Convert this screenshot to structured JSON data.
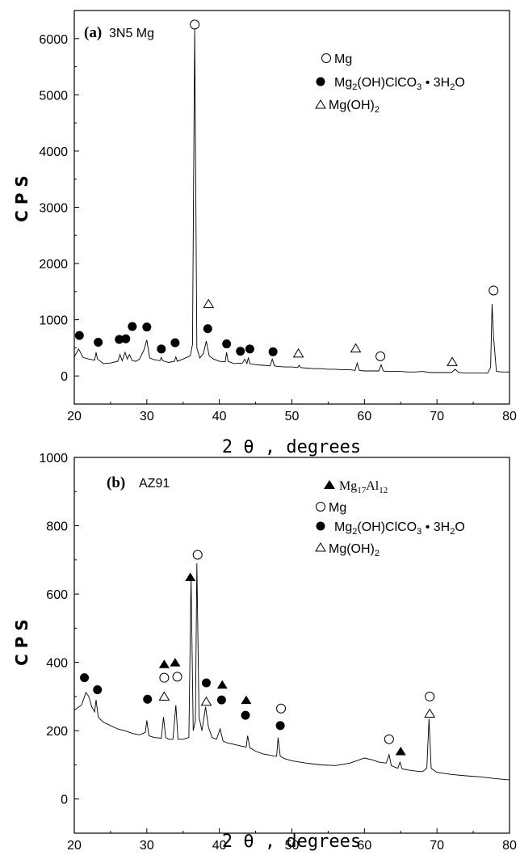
{
  "chart_data": [
    {
      "type": "line",
      "panel_tag": "(a)",
      "panel_name": "3N5 Mg",
      "ylabel": "C P S",
      "xlabel": "2 θ ,  degrees",
      "xlim": [
        20,
        80
      ],
      "ylim": [
        -500,
        6500
      ],
      "xticks": [
        "20",
        "30",
        "40",
        "50",
        "60",
        "70",
        "80"
      ],
      "yticks": [
        "0",
        "1000",
        "2000",
        "3000",
        "4000",
        "5000",
        "6000"
      ],
      "legend": [
        {
          "marker": "open-circle",
          "text": "Mg"
        },
        {
          "marker": "filled-circle",
          "text": "Mg2(OH)ClCO3 · 3H2O"
        },
        {
          "marker": "open-triangle",
          "text": "Mg(OH)2"
        }
      ],
      "series": [
        {
          "x": [
            20,
            20.6,
            21.2,
            22,
            22.8,
            23,
            23.2,
            24,
            25,
            26,
            26.3,
            26.6,
            27,
            27.3,
            27.6,
            28,
            28.5,
            29,
            29.6,
            30,
            30.4,
            31,
            31.8,
            32,
            32.2,
            33,
            33.8,
            34,
            34.2,
            35,
            36,
            36.3,
            36.6,
            36.9,
            37.3,
            37.8,
            38.2,
            38.6,
            39.2,
            40,
            40.8,
            41,
            41.2,
            42,
            43.2,
            43.5,
            43.8,
            44,
            44.2,
            45,
            46,
            47,
            47.3,
            47.6,
            48,
            49,
            50,
            50.8,
            51,
            51.2,
            52,
            53,
            54,
            55,
            56,
            57,
            58,
            58.7,
            59,
            59.3,
            60,
            61,
            62,
            62.3,
            62.6,
            63,
            64,
            65,
            66,
            67,
            68,
            69,
            70,
            71,
            72,
            72.5,
            73,
            74,
            75,
            76,
            77,
            77.4,
            77.6,
            77.8,
            78.2,
            79,
            80
          ],
          "y": [
            340,
            480,
            330,
            300,
            280,
            420,
            300,
            220,
            230,
            260,
            380,
            270,
            420,
            300,
            380,
            270,
            260,
            300,
            460,
            640,
            320,
            290,
            270,
            330,
            270,
            240,
            260,
            340,
            260,
            300,
            360,
            560,
            6200,
            500,
            320,
            400,
            620,
            360,
            300,
            260,
            250,
            420,
            260,
            220,
            230,
            300,
            220,
            330,
            220,
            200,
            190,
            180,
            300,
            180,
            170,
            160,
            160,
            150,
            190,
            150,
            140,
            130,
            130,
            120,
            120,
            110,
            110,
            100,
            230,
            100,
            90,
            90,
            90,
            200,
            90,
            80,
            80,
            80,
            70,
            70,
            80,
            60,
            60,
            60,
            60,
            120,
            60,
            50,
            50,
            50,
            50,
            150,
            1280,
            700,
            80,
            70,
            70
          ]
        }
      ],
      "markers": [
        {
          "type": "open-circle",
          "x": 36.6,
          "y": 6250
        },
        {
          "type": "open-circle",
          "x": 62.2,
          "y": 350
        },
        {
          "type": "open-circle",
          "x": 77.8,
          "y": 1520
        },
        {
          "type": "filled-circle",
          "x": 20.7,
          "y": 720
        },
        {
          "type": "filled-circle",
          "x": 23.3,
          "y": 600
        },
        {
          "type": "filled-circle",
          "x": 26.2,
          "y": 650
        },
        {
          "type": "filled-circle",
          "x": 27.1,
          "y": 660
        },
        {
          "type": "filled-circle",
          "x": 28.0,
          "y": 880
        },
        {
          "type": "filled-circle",
          "x": 30.0,
          "y": 870
        },
        {
          "type": "filled-circle",
          "x": 32.0,
          "y": 480
        },
        {
          "type": "filled-circle",
          "x": 33.9,
          "y": 590
        },
        {
          "type": "filled-circle",
          "x": 38.4,
          "y": 840
        },
        {
          "type": "filled-circle",
          "x": 41.0,
          "y": 570
        },
        {
          "type": "filled-circle",
          "x": 42.9,
          "y": 440
        },
        {
          "type": "filled-circle",
          "x": 44.2,
          "y": 480
        },
        {
          "type": "filled-circle",
          "x": 47.4,
          "y": 430
        },
        {
          "type": "open-triangle",
          "x": 38.5,
          "y": 1280
        },
        {
          "type": "open-triangle",
          "x": 50.9,
          "y": 400
        },
        {
          "type": "open-triangle",
          "x": 58.8,
          "y": 490
        },
        {
          "type": "open-triangle",
          "x": 72.1,
          "y": 250
        }
      ]
    },
    {
      "type": "line",
      "panel_tag": "(b)",
      "panel_name": "AZ91",
      "ylabel": "C P S",
      "xlabel": "2 θ ,  degrees",
      "xlim": [
        20,
        80
      ],
      "ylim": [
        -100,
        1000
      ],
      "xticks": [
        "20",
        "30",
        "40",
        "50",
        "60",
        "70",
        "80"
      ],
      "yticks": [
        "0",
        "200",
        "400",
        "600",
        "800",
        "1000"
      ],
      "legend": [
        {
          "marker": "filled-triangle",
          "text": "Mg17Al12"
        },
        {
          "marker": "open-circle",
          "text": "Mg"
        },
        {
          "marker": "filled-circle",
          "text": "Mg2(OH)ClCO3 · 3H2O"
        },
        {
          "marker": "open-triangle",
          "text": "Mg(OH)2"
        }
      ],
      "series": [
        {
          "x": [
            20,
            21,
            21.6,
            22,
            22.4,
            22.8,
            23,
            23.3,
            24,
            25,
            26,
            27,
            28,
            29,
            29.8,
            30,
            30.3,
            31,
            32,
            32.3,
            32.6,
            33,
            33.6,
            34,
            34.3,
            35,
            35.8,
            36.1,
            36.4,
            36.7,
            36.9,
            37.2,
            37.6,
            38.1,
            38.5,
            39,
            39.6,
            40.1,
            40.5,
            41,
            42,
            43,
            43.7,
            43.9,
            44.2,
            45,
            46,
            47,
            47.9,
            48.1,
            48.4,
            49,
            50,
            52,
            54,
            56,
            58,
            60,
            61,
            62,
            63,
            63.4,
            63.7,
            64,
            64.6,
            64.9,
            65.2,
            66,
            67,
            68,
            68.6,
            68.9,
            69.2,
            70,
            72,
            74,
            76,
            78,
            80
          ],
          "y": [
            260,
            275,
            312,
            300,
            270,
            255,
            290,
            240,
            225,
            215,
            205,
            200,
            192,
            188,
            195,
            230,
            185,
            180,
            178,
            240,
            180,
            175,
            175,
            275,
            175,
            175,
            180,
            650,
            200,
            230,
            690,
            240,
            200,
            270,
            210,
            180,
            175,
            205,
            170,
            165,
            160,
            155,
            152,
            185,
            150,
            140,
            132,
            128,
            125,
            180,
            125,
            118,
            112,
            105,
            100,
            98,
            105,
            120,
            115,
            108,
            105,
            130,
            98,
            95,
            90,
            108,
            88,
            85,
            82,
            80,
            90,
            235,
            90,
            78,
            72,
            68,
            65,
            60,
            56
          ]
        }
      ],
      "markers": [
        {
          "type": "filled-triangle",
          "x": 32.4,
          "y": 395
        },
        {
          "type": "filled-triangle",
          "x": 33.9,
          "y": 400
        },
        {
          "type": "filled-triangle",
          "x": 36.0,
          "y": 650
        },
        {
          "type": "filled-triangle",
          "x": 40.4,
          "y": 335
        },
        {
          "type": "filled-triangle",
          "x": 43.7,
          "y": 290
        },
        {
          "type": "filled-triangle",
          "x": 65.0,
          "y": 140
        },
        {
          "type": "open-circle",
          "x": 32.4,
          "y": 355
        },
        {
          "type": "open-circle",
          "x": 34.2,
          "y": 358
        },
        {
          "type": "open-circle",
          "x": 37.0,
          "y": 715
        },
        {
          "type": "open-circle",
          "x": 48.5,
          "y": 265
        },
        {
          "type": "open-circle",
          "x": 63.4,
          "y": 175
        },
        {
          "type": "open-circle",
          "x": 69.0,
          "y": 300
        },
        {
          "type": "filled-circle",
          "x": 21.4,
          "y": 355
        },
        {
          "type": "filled-circle",
          "x": 23.2,
          "y": 320
        },
        {
          "type": "filled-circle",
          "x": 30.1,
          "y": 292
        },
        {
          "type": "filled-circle",
          "x": 38.2,
          "y": 340
        },
        {
          "type": "filled-circle",
          "x": 40.3,
          "y": 290
        },
        {
          "type": "filled-circle",
          "x": 43.6,
          "y": 245
        },
        {
          "type": "filled-circle",
          "x": 48.4,
          "y": 215
        },
        {
          "type": "open-triangle",
          "x": 32.4,
          "y": 300
        },
        {
          "type": "open-triangle",
          "x": 38.2,
          "y": 285
        },
        {
          "type": "open-triangle",
          "x": 69.0,
          "y": 250
        }
      ]
    }
  ]
}
